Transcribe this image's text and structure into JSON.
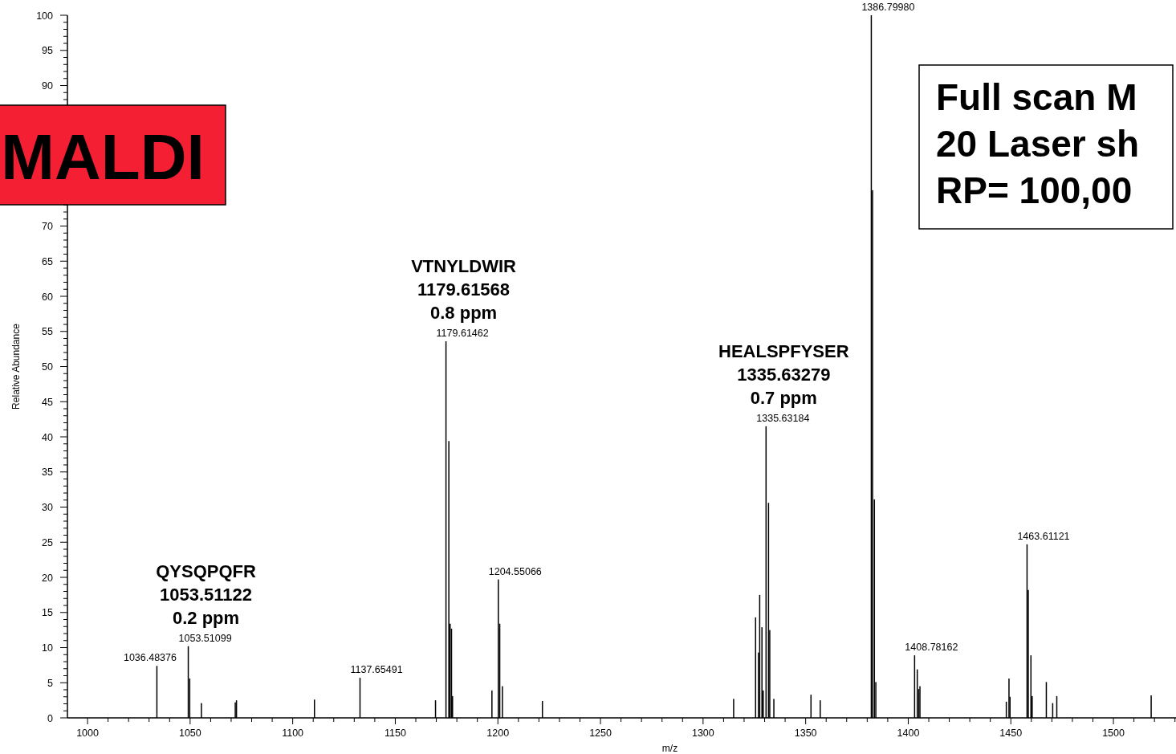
{
  "chart_data": {
    "type": "bar",
    "xlabel": "m/z",
    "ylabel": "Relative Abundance",
    "color": "#000000",
    "x": [
      1033.8,
      1049.1,
      1049.8,
      1055.5,
      1072.0,
      1072.6,
      1110.6,
      1132.8,
      1169.6,
      1174.7,
      1176.1,
      1176.7,
      1177.4,
      1177.9,
      1197.1,
      1200.2,
      1200.9,
      1202.2,
      1221.7,
      1314.9,
      1325.6,
      1327.0,
      1327.6,
      1328.7,
      1329.3,
      1330.7,
      1331.9,
      1332.5,
      1334.5,
      1352.6,
      1357.1,
      1382.0,
      1382.6,
      1383.5,
      1384.2,
      1403.1,
      1404.4,
      1405.1,
      1405.7,
      1447.8,
      1449.1,
      1449.6,
      1457.9,
      1458.5,
      1459.8,
      1460.4,
      1467.3,
      1470.4,
      1472.4,
      1518.4
    ],
    "values": [
      7.4,
      10.2,
      5.6,
      2.1,
      2.2,
      2.5,
      2.6,
      5.7,
      2.5,
      53.6,
      39.4,
      13.4,
      12.7,
      3.1,
      3.9,
      19.7,
      13.4,
      4.5,
      2.4,
      2.7,
      14.3,
      9.3,
      17.5,
      12.9,
      3.9,
      41.5,
      30.6,
      12.5,
      2.7,
      3.3,
      2.5,
      100,
      75.1,
      31.1,
      5.1,
      8.9,
      6.9,
      4.1,
      4.5,
      2.3,
      5.6,
      3.0,
      24.7,
      18.2,
      8.9,
      3.1,
      5.1,
      2.1,
      3.1,
      3.2
    ],
    "xlim": [
      990.2,
      1530.5
    ],
    "xticks": [
      1000,
      {
        "value": 1010,
        "label": null
      },
      {
        "value": 1020,
        "label": null
      },
      {
        "value": 1030,
        "label": null
      },
      {
        "value": 1040,
        "label": null
      },
      1050,
      {
        "value": 1060,
        "label": null
      },
      {
        "value": 1070,
        "label": null
      },
      {
        "value": 1080,
        "label": null
      },
      {
        "value": 1090,
        "label": null
      },
      1100,
      {
        "value": 1110,
        "label": null
      },
      {
        "value": 1120,
        "label": null
      },
      {
        "value": 1130,
        "label": null
      },
      {
        "value": 1140,
        "label": null
      },
      1150,
      {
        "value": 1160,
        "label": null
      },
      {
        "value": 1170,
        "label": null
      },
      {
        "value": 1180,
        "label": null
      },
      {
        "value": 1190,
        "label": null
      },
      1200,
      {
        "value": 1210,
        "label": null
      },
      {
        "value": 1220,
        "label": null
      },
      {
        "value": 1230,
        "label": null
      },
      {
        "value": 1240,
        "label": null
      },
      1250,
      {
        "value": 1260,
        "label": null
      },
      {
        "value": 1270,
        "label": null
      },
      {
        "value": 1280,
        "label": null
      },
      {
        "value": 1290,
        "label": null
      },
      1300,
      {
        "value": 1310,
        "label": null
      },
      {
        "value": 1320,
        "label": null
      },
      {
        "value": 1330,
        "label": null
      },
      {
        "value": 1340,
        "label": null
      },
      1350,
      {
        "value": 1360,
        "label": null
      },
      {
        "value": 1370,
        "label": null
      },
      {
        "value": 1380,
        "label": null
      },
      {
        "value": 1390,
        "label": null
      },
      1400,
      {
        "value": 1410,
        "label": null
      },
      {
        "value": 1420,
        "label": null
      },
      {
        "value": 1430,
        "label": null
      },
      {
        "value": 1440,
        "label": null
      },
      1450,
      {
        "value": 1460,
        "label": null
      },
      {
        "value": 1470,
        "label": null
      },
      {
        "value": 1480,
        "label": null
      },
      {
        "value": 1490,
        "label": null
      },
      1500,
      {
        "value": 1510,
        "label": null
      },
      {
        "value": 1520,
        "label": null
      },
      {
        "value": 1530,
        "label": null
      }
    ],
    "ylim": [
      0,
      100
    ],
    "yticks": [
      0,
      {
        "value": 1,
        "label": null
      },
      {
        "value": 2,
        "label": null
      },
      {
        "value": 3,
        "label": null
      },
      {
        "value": 4,
        "label": null
      },
      5,
      {
        "value": 6,
        "label": null
      },
      {
        "value": 7,
        "label": null
      },
      {
        "value": 8,
        "label": null
      },
      {
        "value": 9,
        "label": null
      },
      10,
      {
        "value": 11,
        "label": null
      },
      {
        "value": 12,
        "label": null
      },
      {
        "value": 13,
        "label": null
      },
      {
        "value": 14,
        "label": null
      },
      15,
      {
        "value": 16,
        "label": null
      },
      {
        "value": 17,
        "label": null
      },
      {
        "value": 18,
        "label": null
      },
      {
        "value": 19,
        "label": null
      },
      20,
      {
        "value": 21,
        "label": null
      },
      {
        "value": 22,
        "label": null
      },
      {
        "value": 23,
        "label": null
      },
      {
        "value": 24,
        "label": null
      },
      25,
      {
        "value": 26,
        "label": null
      },
      {
        "value": 27,
        "label": null
      },
      {
        "value": 28,
        "label": null
      },
      {
        "value": 29,
        "label": null
      },
      30,
      {
        "value": 31,
        "label": null
      },
      {
        "value": 32,
        "label": null
      },
      {
        "value": 33,
        "label": null
      },
      {
        "value": 34,
        "label": null
      },
      35,
      {
        "value": 36,
        "label": null
      },
      {
        "value": 37,
        "label": null
      },
      {
        "value": 38,
        "label": null
      },
      {
        "value": 39,
        "label": null
      },
      40,
      {
        "value": 41,
        "label": null
      },
      {
        "value": 42,
        "label": null
      },
      {
        "value": 43,
        "label": null
      },
      {
        "value": 44,
        "label": null
      },
      45,
      {
        "value": 46,
        "label": null
      },
      {
        "value": 47,
        "label": null
      },
      {
        "value": 48,
        "label": null
      },
      {
        "value": 49,
        "label": null
      },
      50,
      {
        "value": 51,
        "label": null
      },
      {
        "value": 52,
        "label": null
      },
      {
        "value": 53,
        "label": null
      },
      {
        "value": 54,
        "label": null
      },
      55,
      {
        "value": 56,
        "label": null
      },
      {
        "value": 57,
        "label": null
      },
      {
        "value": 58,
        "label": null
      },
      {
        "value": 59,
        "label": null
      },
      60,
      {
        "value": 61,
        "label": null
      },
      {
        "value": 62,
        "label": null
      },
      {
        "value": 63,
        "label": null
      },
      {
        "value": 64,
        "label": null
      },
      65,
      {
        "value": 66,
        "label": null
      },
      {
        "value": 67,
        "label": null
      },
      {
        "value": 68,
        "label": null
      },
      {
        "value": 69,
        "label": null
      },
      70,
      {
        "value": 71,
        "label": null
      },
      {
        "value": 72,
        "label": null
      },
      {
        "value": 73,
        "label": null
      },
      {
        "value": 74,
        "label": null
      },
      {
        "value": 75,
        "label": null
      },
      {
        "value": 76,
        "label": null
      },
      {
        "value": 77,
        "label": null
      },
      {
        "value": 78,
        "label": null
      },
      {
        "value": 79,
        "label": null
      },
      {
        "value": 80,
        "label": null
      },
      {
        "value": 81,
        "label": null
      },
      {
        "value": 82,
        "label": null
      },
      {
        "value": 83,
        "label": null
      },
      {
        "value": 84,
        "label": null
      },
      {
        "value": 85,
        "label": null
      },
      {
        "value": 86,
        "label": null
      },
      {
        "value": 87,
        "label": null
      },
      {
        "value": 88,
        "label": null
      },
      {
        "value": 89,
        "label": null
      },
      90,
      {
        "value": 91,
        "label": null
      },
      {
        "value": 92,
        "label": null
      },
      {
        "value": 93,
        "label": null
      },
      {
        "value": 94,
        "label": null
      },
      95,
      {
        "value": 96,
        "label": null
      },
      {
        "value": 97,
        "label": null
      },
      {
        "value": 98,
        "label": null
      },
      {
        "value": 99,
        "label": null
      },
      100
    ],
    "annotations": [
      {
        "text": "1036.48376",
        "x": 1033.8,
        "y": 7.4
      },
      {
        "text": "1053.51099",
        "x": 1049.1,
        "y": 10.2
      },
      {
        "text": "1137.65491",
        "x": 1132.8,
        "y": 5.7
      },
      {
        "text": "1179.61462",
        "x": 1174.7,
        "y": 53.6
      },
      {
        "text": "1204.55066",
        "x": 1200.2,
        "y": 19.7
      },
      {
        "text": "1335.63184",
        "x": 1330.7,
        "y": 41.5
      },
      {
        "text": "1386.79980",
        "x": 1382.0,
        "y": 100
      },
      {
        "text": "1408.78162",
        "x": 1403.1,
        "y": 8.9
      },
      {
        "text": "1463.61121",
        "x": 1457.9,
        "y": 24.7
      },
      {
        "text": "QYSQPQFR\n1053.51122\n0.2 ppm",
        "x": 1049.1,
        "y": 10.2
      },
      {
        "text": "VTNYLDWIR\n1179.61568\n0.8 ppm",
        "x": 1174.7,
        "y": 53.6
      },
      {
        "text": "HEALSPFYSER\n1335.63279\n0.7 ppm",
        "x": 1330.7,
        "y": 41.5
      },
      "MALDI",
      "Full scan M\n20 Laser sh\nRP= 100,00"
    ]
  }
}
